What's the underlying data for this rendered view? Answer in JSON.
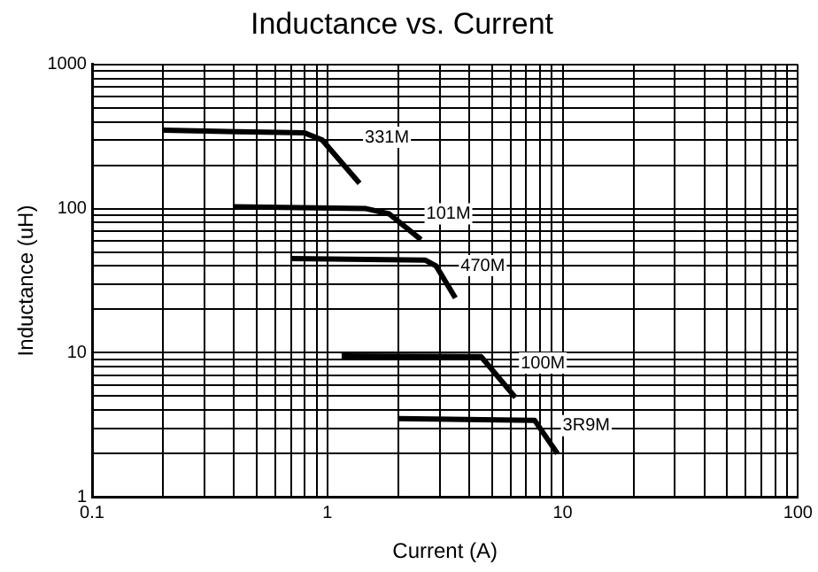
{
  "chart_data": {
    "type": "line",
    "title": "Inductance vs. Current",
    "xlabel": "Current (A)",
    "ylabel": "Inductance (uH)",
    "log": "xy",
    "grid": true,
    "legend": false,
    "marker": "none",
    "line_style": "solid",
    "xlim": [
      0.1,
      100
    ],
    "ylim": [
      1,
      1000
    ],
    "xticks": [
      0.1,
      {
        "value": 0.2,
        "label": null
      },
      {
        "value": 0.3,
        "label": null
      },
      {
        "value": 0.4,
        "label": null
      },
      {
        "value": 0.5,
        "label": null
      },
      {
        "value": 0.6,
        "label": null
      },
      {
        "value": 0.7,
        "label": null
      },
      {
        "value": 0.8,
        "label": null
      },
      {
        "value": 0.9,
        "label": null
      },
      1,
      {
        "value": 2,
        "label": null
      },
      {
        "value": 3,
        "label": null
      },
      {
        "value": 4,
        "label": null
      },
      {
        "value": 5,
        "label": null
      },
      {
        "value": 6,
        "label": null
      },
      {
        "value": 7,
        "label": null
      },
      {
        "value": 8,
        "label": null
      },
      {
        "value": 9,
        "label": null
      },
      10,
      {
        "value": 20,
        "label": null
      },
      {
        "value": 30,
        "label": null
      },
      {
        "value": 40,
        "label": null
      },
      {
        "value": 50,
        "label": null
      },
      {
        "value": 60,
        "label": null
      },
      {
        "value": 70,
        "label": null
      },
      {
        "value": 80,
        "label": null
      },
      {
        "value": 90,
        "label": null
      },
      100
    ],
    "yticks": [
      1,
      {
        "value": 2,
        "label": null
      },
      {
        "value": 3,
        "label": null
      },
      {
        "value": 4,
        "label": null
      },
      {
        "value": 5,
        "label": null
      },
      {
        "value": 6,
        "label": null
      },
      {
        "value": 7,
        "label": null
      },
      {
        "value": 8,
        "label": null
      },
      {
        "value": 9,
        "label": null
      },
      10,
      {
        "value": 20,
        "label": null
      },
      {
        "value": 30,
        "label": null
      },
      {
        "value": 40,
        "label": null
      },
      {
        "value": 50,
        "label": null
      },
      {
        "value": 60,
        "label": null
      },
      {
        "value": 70,
        "label": null
      },
      {
        "value": 80,
        "label": null
      },
      {
        "value": 90,
        "label": null
      },
      100,
      {
        "value": 200,
        "label": null
      },
      {
        "value": 300,
        "label": null
      },
      {
        "value": 400,
        "label": null
      },
      {
        "value": 500,
        "label": null
      },
      {
        "value": 600,
        "label": null
      },
      {
        "value": 700,
        "label": null
      },
      {
        "value": 800,
        "label": null
      },
      {
        "value": 900,
        "label": null
      },
      1000
    ],
    "series": [
      {
        "name": "331M",
        "color": "#000000",
        "x": [
          0.2,
          0.8,
          0.95,
          1.37
        ],
        "values": [
          350,
          335,
          300,
          150
        ]
      },
      {
        "name": "101M",
        "color": "#000000",
        "x": [
          0.4,
          1.46,
          1.83,
          2.5
        ],
        "values": [
          103,
          100,
          92,
          61
        ]
      },
      {
        "name": "470M",
        "color": "#000000",
        "x": [
          0.7,
          2.6,
          2.9,
          3.5
        ],
        "values": [
          45,
          44,
          40,
          24
        ]
      },
      {
        "name": "100M",
        "color": "#000000",
        "x": [
          1.15,
          4.5,
          6.3
        ],
        "values": [
          9.5,
          9.4,
          4.9
        ]
      },
      {
        "name": "3R9M",
        "color": "#000000",
        "x": [
          2,
          7.6,
          9.5
        ],
        "values": [
          3.5,
          3.4,
          2.0
        ]
      }
    ]
  }
}
